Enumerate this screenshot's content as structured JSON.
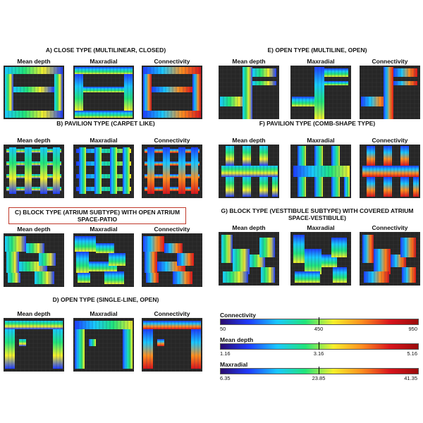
{
  "colors": {
    "background": "#262626",
    "grid_line": "#3a3a3a",
    "highlight_border": "#c0392b",
    "ramp": [
      "#2a0a6e",
      "#1f3cff",
      "#19c8ff",
      "#21e57a",
      "#f7f02a",
      "#ff8f1f",
      "#d9141c",
      "#9b0b0b"
    ]
  },
  "column_headings": {
    "mean_depth": "Mean depth",
    "maxradial": "Maxradial",
    "connectivity": "Connectivity"
  },
  "sections": [
    {
      "id": "a",
      "title": "A) CLOSE TYPE (MULTILINEAR, CLOSED)"
    },
    {
      "id": "b",
      "title": "B) PAVILION TYPE (CARPET LIKE)"
    },
    {
      "id": "c",
      "title": "C) BLOCK TYPE (ATRIUM SUBTYPE) WITH OPEN ATRIUM SPACE-PATIO"
    },
    {
      "id": "d",
      "title": "D) OPEN TYPE (SINGLE-LINE, OPEN)"
    },
    {
      "id": "e",
      "title": "E) OPEN TYPE (MULTILINE, OPEN)"
    },
    {
      "id": "f",
      "title": "F) PAVILION TYPE (COMB-SHAPE TYPE)"
    },
    {
      "id": "g",
      "title": "G) BLOCK TYPE (VESTTIBULE SUBTYPE) WITH COVERED ATRIUM SPACE-VESTIBULE)"
    }
  ],
  "legend": {
    "scales": [
      {
        "title": "Connectivity",
        "min": "50",
        "mid": "450",
        "max": "950"
      },
      {
        "title": "Mean depth",
        "min": "1.16",
        "mid": "3.16",
        "max": "5.16"
      },
      {
        "title": "Maxradial",
        "min": "6.35",
        "mid": "23.85",
        "max": "41.35"
      }
    ]
  }
}
